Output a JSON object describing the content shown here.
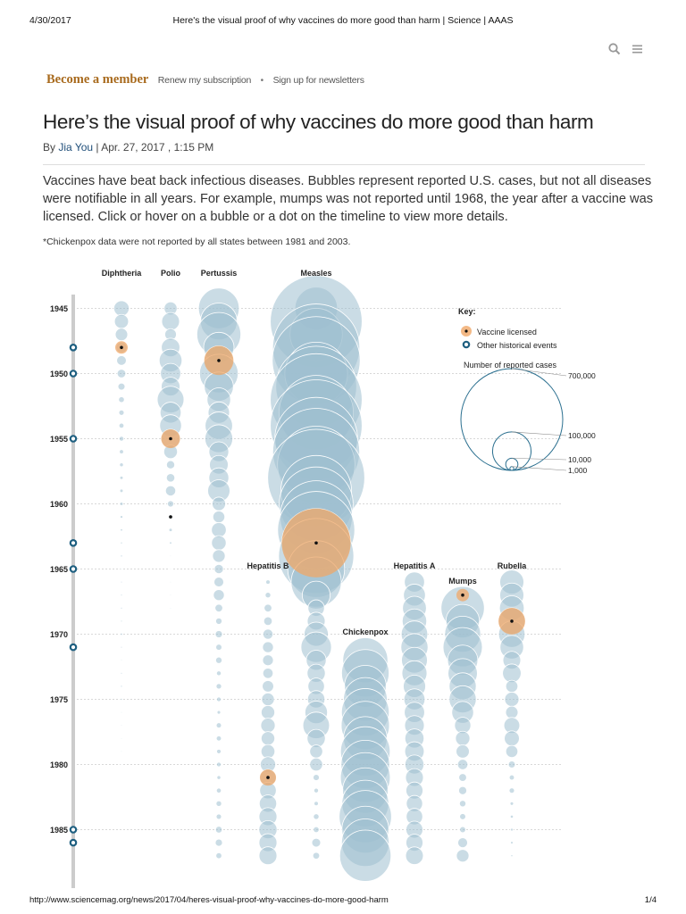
{
  "print_header": {
    "date": "4/30/2017",
    "title": "Here's the visual proof of why vaccines do more good than harm | Science | AAAS"
  },
  "print_footer": {
    "url": "http://www.sciencemag.org/news/2017/04/heres-visual-proof-why-vaccines-do-more-good-harm",
    "page": "1/4"
  },
  "toolbar": {
    "icons": [
      "search-icon",
      "menu-icon"
    ]
  },
  "member_bar": {
    "become": "Become a member",
    "renew": "Renew my subscription",
    "separator": "•",
    "newsletters": "Sign up for newsletters"
  },
  "article": {
    "headline": "Here’s the visual proof of why vaccines do more good than harm",
    "by": "By",
    "author": "Jia You",
    "date": "| Apr. 27, 2017 , 1:15 PM",
    "lede": "Vaccines have beat back infectious diseases. Bubbles represent reported U.S. cases, but not all diseases were notifiable in all years. For example, mumps was not reported until 1968, the year after a vaccine was licensed. Click or hover on a bubble or a dot on the timeline to view more details.",
    "note": "*Chickenpox data were not reported by all states between 1981 and 2003."
  },
  "colors": {
    "bubble": "#9fc0d0",
    "bubble_stroke": "#ffffff",
    "vaccine": "#f0a868",
    "event_ring": "#1e5f80",
    "grid": "#cccccc",
    "axis": "#cccccc",
    "text": "#222222"
  },
  "chart_data": {
    "type": "scatter",
    "encoding": "bubble area ∝ reported U.S. cases",
    "years_visible": [
      1943,
      1987
    ],
    "year_ticks": [
      1945,
      1950,
      1955,
      1960,
      1965,
      1970,
      1975,
      1980,
      1985
    ],
    "timeline_events": [
      1948,
      1950,
      1955,
      1963,
      1965,
      1971,
      1985,
      1986
    ],
    "key": {
      "title": "Key:",
      "vaccine_label": "Vaccine licensed",
      "event_label": "Other historical events",
      "size_title": "Number of reported cases",
      "size_legend": [
        {
          "value": 700000,
          "label": "700,000"
        },
        {
          "value": 100000,
          "label": "100,000"
        },
        {
          "value": 10000,
          "label": "10,000"
        },
        {
          "value": 1000,
          "label": "1,000"
        }
      ]
    },
    "series": [
      {
        "name": "Diphtheria",
        "vaccine_year": 1948,
        "years": [
          1945,
          1946,
          1947,
          1948,
          1949,
          1950,
          1951,
          1952,
          1953,
          1954,
          1955,
          1956,
          1957,
          1958,
          1959,
          1960,
          1961,
          1962,
          1963,
          1964,
          1965,
          1966,
          1967,
          1968,
          1969,
          1970,
          1971,
          1972,
          1973,
          1974,
          1975,
          1976,
          1977,
          1978,
          1979,
          1980
        ],
        "values": [
          19000,
          16000,
          12500,
          9500,
          7500,
          6000,
          4000,
          2700,
          2300,
          2000,
          1800,
          1400,
          1200,
          900,
          900,
          900,
          620,
          440,
          310,
          310,
          160,
          210,
          220,
          260,
          240,
          430,
          220,
          150,
          230,
          270,
          310,
          120,
          80,
          80,
          60,
          3
        ]
      },
      {
        "name": "Polio",
        "vaccine_year": 1955,
        "marker_years": [
          1955,
          1961
        ],
        "years": [
          1945,
          1946,
          1947,
          1948,
          1949,
          1950,
          1951,
          1952,
          1953,
          1954,
          1955,
          1956,
          1957,
          1958,
          1959,
          1960,
          1961,
          1962,
          1963,
          1964,
          1965,
          1966,
          1967,
          1968
        ],
        "values": [
          13600,
          25700,
          10800,
          27700,
          42000,
          33300,
          28400,
          57900,
          35600,
          38500,
          28900,
          15100,
          5500,
          5800,
          8400,
          3200,
          1300,
          900,
          450,
          120,
          70,
          110,
          40,
          50
        ]
      },
      {
        "name": "Pertussis",
        "vaccine_year": 1949,
        "years": [
          1945,
          1946,
          1947,
          1948,
          1949,
          1950,
          1951,
          1952,
          1953,
          1954,
          1955,
          1956,
          1957,
          1958,
          1959,
          1960,
          1961,
          1962,
          1963,
          1964,
          1965,
          1966,
          1967,
          1968,
          1969,
          1970,
          1971,
          1972,
          1973,
          1974,
          1975,
          1976,
          1977,
          1978,
          1979,
          1980,
          1981,
          1982,
          1983,
          1984,
          1985,
          1986,
          1987
        ],
        "values": [
          133800,
          109800,
          156500,
          74700,
          69500,
          120700,
          68700,
          45000,
          37100,
          60900,
          62800,
          31700,
          28300,
          32100,
          40000,
          14800,
          11500,
          17700,
          17300,
          13000,
          6800,
          7700,
          9700,
          4800,
          3300,
          4200,
          3000,
          3300,
          1800,
          2400,
          1700,
          1000,
          2200,
          2100,
          1600,
          1700,
          1200,
          1900,
          2500,
          2300,
          3600,
          4200,
          2800
        ]
      },
      {
        "name": "Measles",
        "vaccine_year": 1963,
        "years": [
          1945,
          1946,
          1947,
          1948,
          1949,
          1950,
          1951,
          1952,
          1953,
          1954,
          1955,
          1956,
          1957,
          1958,
          1959,
          1960,
          1961,
          1962,
          1963,
          1964,
          1965,
          1966,
          1967,
          1968,
          1969,
          1970,
          1971,
          1972,
          1973,
          1974,
          1975,
          1976,
          1977,
          1978,
          1979,
          1980,
          1981,
          1982,
          1983,
          1984,
          1985,
          1986,
          1987
        ],
        "values": [
          146000,
          683000,
          222000,
          615000,
          626000,
          319000,
          530000,
          683000,
          449000,
          683000,
          555000,
          612000,
          486000,
          763000,
          406000,
          442000,
          424000,
          482000,
          385000,
          458000,
          262000,
          204000,
          63000,
          22000,
          25800,
          47400,
          75300,
          32300,
          26700,
          22100,
          24400,
          41100,
          57300,
          26900,
          13600,
          13500,
          3100,
          1700,
          1500,
          2600,
          2800,
          6300,
          3700
        ]
      },
      {
        "name": "Hepatitis B",
        "vaccine_year": 1981,
        "years": [
          1966,
          1967,
          1968,
          1969,
          1970,
          1971,
          1972,
          1973,
          1974,
          1975,
          1976,
          1977,
          1978,
          1979,
          1980,
          1981,
          1982,
          1983,
          1984,
          1985,
          1986,
          1987
        ],
        "values": [
          1500,
          2500,
          4800,
          5900,
          8300,
          9600,
          9400,
          8500,
          10600,
          13100,
          14900,
          16800,
          15000,
          15500,
          19000,
          21200,
          22200,
          24300,
          26100,
          26600,
          26100,
          25900
        ]
      },
      {
        "name": "Chickenpox",
        "vaccine_year": null,
        "years": [
          1972,
          1973,
          1974,
          1975,
          1976,
          1977,
          1978,
          1979,
          1980,
          1981,
          1982,
          1983,
          1984,
          1985,
          1986,
          1987
        ],
        "values": [
          164000,
          182900,
          141500,
          154200,
          183900,
          188400,
          154100,
          199100,
          190900,
          200800,
          167400,
          177500,
          221900,
          178200,
          183200,
          213200
        ]
      },
      {
        "name": "Hepatitis A",
        "vaccine_year": null,
        "years": [
          1966,
          1967,
          1968,
          1969,
          1970,
          1971,
          1972,
          1973,
          1974,
          1975,
          1976,
          1977,
          1978,
          1979,
          1980,
          1981,
          1982,
          1983,
          1984,
          1985,
          1986,
          1987
        ],
        "values": [
          32900,
          38900,
          45900,
          48400,
          56800,
          59600,
          54000,
          50700,
          40400,
          35900,
          33300,
          31200,
          29500,
          30400,
          29100,
          25800,
          23400,
          21500,
          22000,
          23200,
          23400,
          25300
        ]
      },
      {
        "name": "Mumps",
        "vaccine_year": 1967,
        "marker_years": [
          1967
        ],
        "years": [
          1968,
          1969,
          1970,
          1971,
          1972,
          1973,
          1974,
          1975,
          1976,
          1977,
          1978,
          1979,
          1980,
          1981,
          1982,
          1983,
          1984,
          1985,
          1986,
          1987
        ],
        "values": [
          152000,
          90900,
          105000,
          124900,
          74200,
          69600,
          59100,
          59600,
          38500,
          21400,
          16800,
          14200,
          8600,
          4900,
          5300,
          3400,
          3000,
          3000,
          7800,
          12800
        ]
      },
      {
        "name": "Rubella",
        "vaccine_year": 1969,
        "years": [
          1966,
          1967,
          1968,
          1969,
          1970,
          1971,
          1972,
          1973,
          1974,
          1975,
          1976,
          1977,
          1978,
          1979,
          1980,
          1981,
          1982,
          1983,
          1984,
          1985,
          1986,
          1987
        ],
        "values": [
          46900,
          46800,
          49400,
          57600,
          56600,
          45100,
          25500,
          27800,
          11900,
          16700,
          12500,
          20400,
          18300,
          11800,
          3900,
          2100,
          2300,
          970,
          750,
          630,
          550,
          310
        ]
      }
    ]
  }
}
